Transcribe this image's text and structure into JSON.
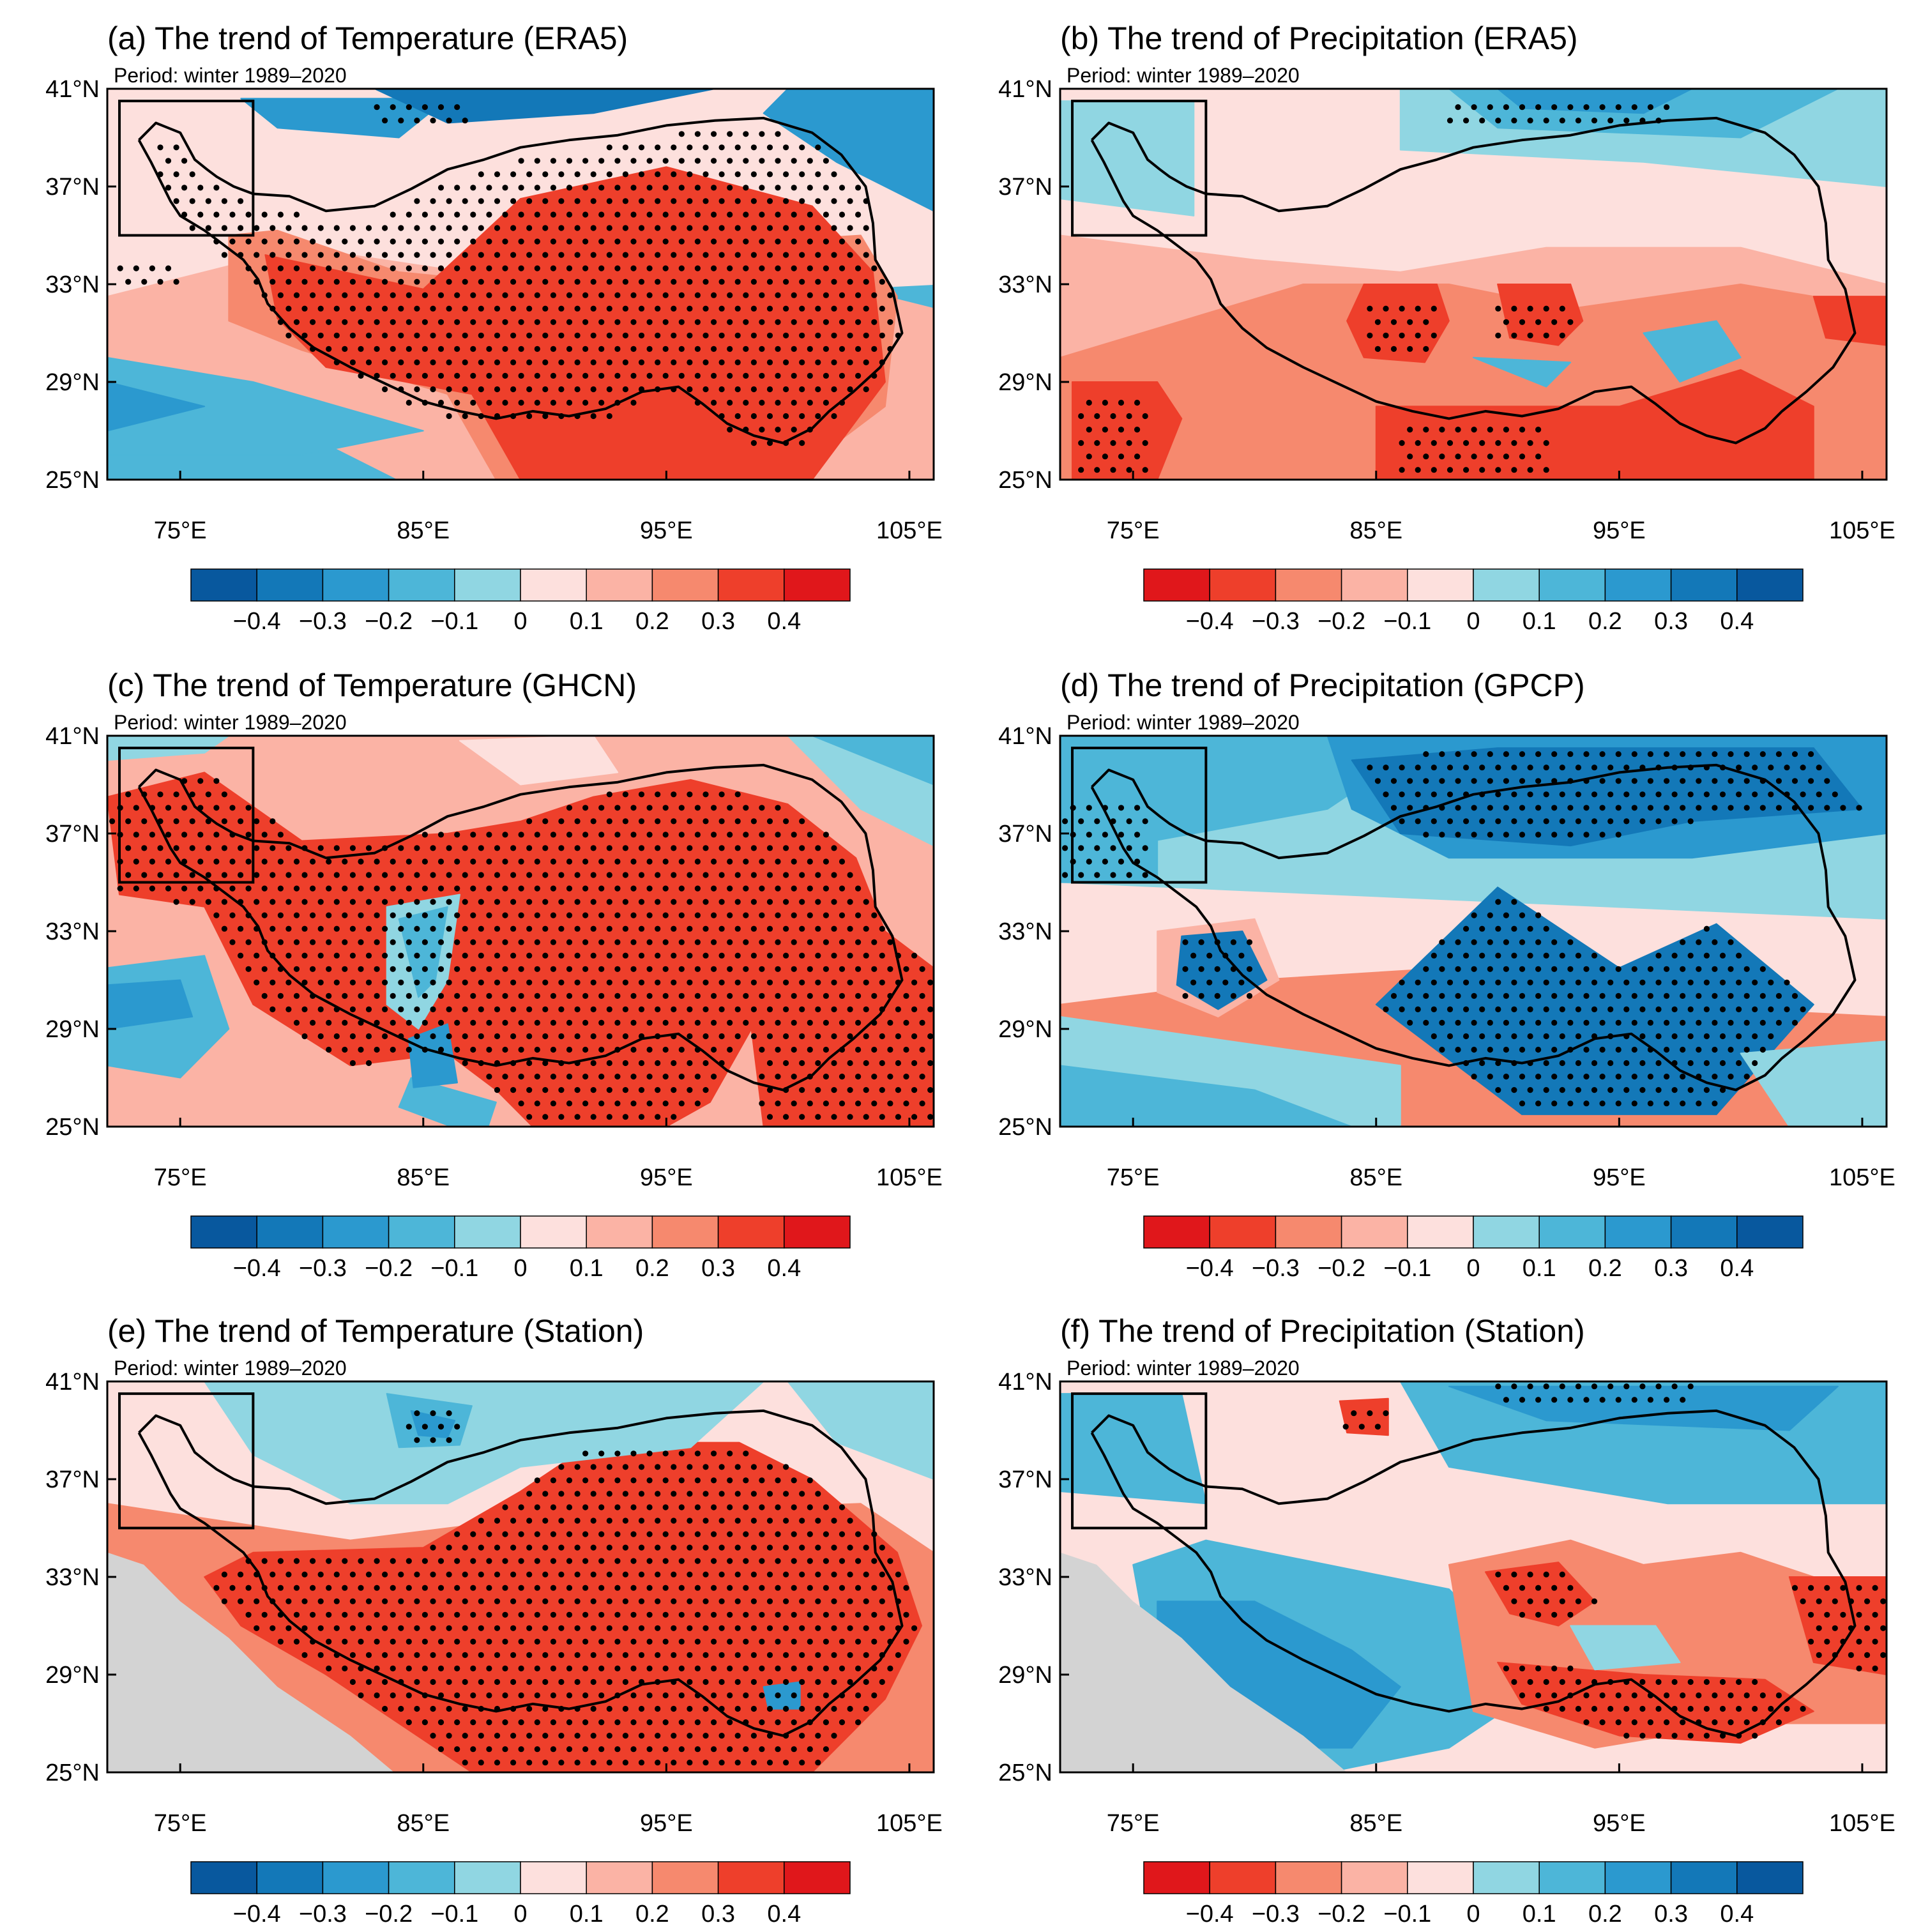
{
  "figure": {
    "panels": [
      {
        "id": "a",
        "title": "(a) The trend of Temperature (ERA5)",
        "period": "Period: winter 1989–2020",
        "variable": "temperature",
        "dataset": "ERA5",
        "colorbar": "warm"
      },
      {
        "id": "b",
        "title": "(b) The trend of Precipitation (ERA5)",
        "period": "Period: winter 1989–2020",
        "variable": "precipitation",
        "dataset": "ERA5",
        "colorbar": "wet"
      },
      {
        "id": "c",
        "title": "(c) The trend of Temperature (GHCN)",
        "period": "Period: winter 1989–2020",
        "variable": "temperature",
        "dataset": "GHCN",
        "colorbar": "warm"
      },
      {
        "id": "d",
        "title": "(d) The trend of Precipitation (GPCP)",
        "period": "Period: winter 1989–2020",
        "variable": "precipitation",
        "dataset": "GPCP",
        "colorbar": "wet"
      },
      {
        "id": "e",
        "title": "(e) The trend of Temperature (Station)",
        "period": "Period: winter 1989–2020",
        "variable": "temperature",
        "dataset": "Station",
        "colorbar": "warm"
      },
      {
        "id": "f",
        "title": "(f) The trend of Precipitation (Station)",
        "period": "Period: winter 1989–2020",
        "variable": "precipitation",
        "dataset": "Station",
        "colorbar": "wet"
      }
    ],
    "lat_labels": [
      "41°N",
      "37°N",
      "33°N",
      "29°N",
      "25°N"
    ],
    "lat_values": [
      41,
      37,
      33,
      29,
      25
    ],
    "lon_labels": [
      "75°E",
      "85°E",
      "95°E",
      "105°E"
    ],
    "lon_values": [
      75,
      85,
      95,
      105
    ],
    "lon_range": [
      72,
      106
    ],
    "lat_range": [
      25,
      41
    ],
    "box_region": {
      "lon": [
        72.5,
        78
      ],
      "lat": [
        35,
        40.5
      ]
    },
    "colorbar_labels": [
      "−0.4",
      "−0.3",
      "−0.2",
      "−0.1",
      "0",
      "0.1",
      "0.2",
      "0.3",
      "0.4"
    ],
    "colorbar_levels": [
      -0.4,
      -0.3,
      -0.2,
      -0.1,
      0,
      0.1,
      0.2,
      0.3,
      0.4
    ],
    "palette_warm": [
      "#08589e",
      "#1378b8",
      "#2b99cf",
      "#4db6d8",
      "#90d6e2",
      "#fde0dd",
      "#fbb3a5",
      "#f6896e",
      "#ee3f2b",
      "#e0171b"
    ],
    "palette_wet": [
      "#e0171b",
      "#ee3f2b",
      "#f6896e",
      "#fbb3a5",
      "#fde0dd",
      "#90d6e2",
      "#4db6d8",
      "#2b99cf",
      "#1378b8",
      "#08589e"
    ],
    "missing_color": "#d3d3d3",
    "stipple_color": "#000000"
  }
}
